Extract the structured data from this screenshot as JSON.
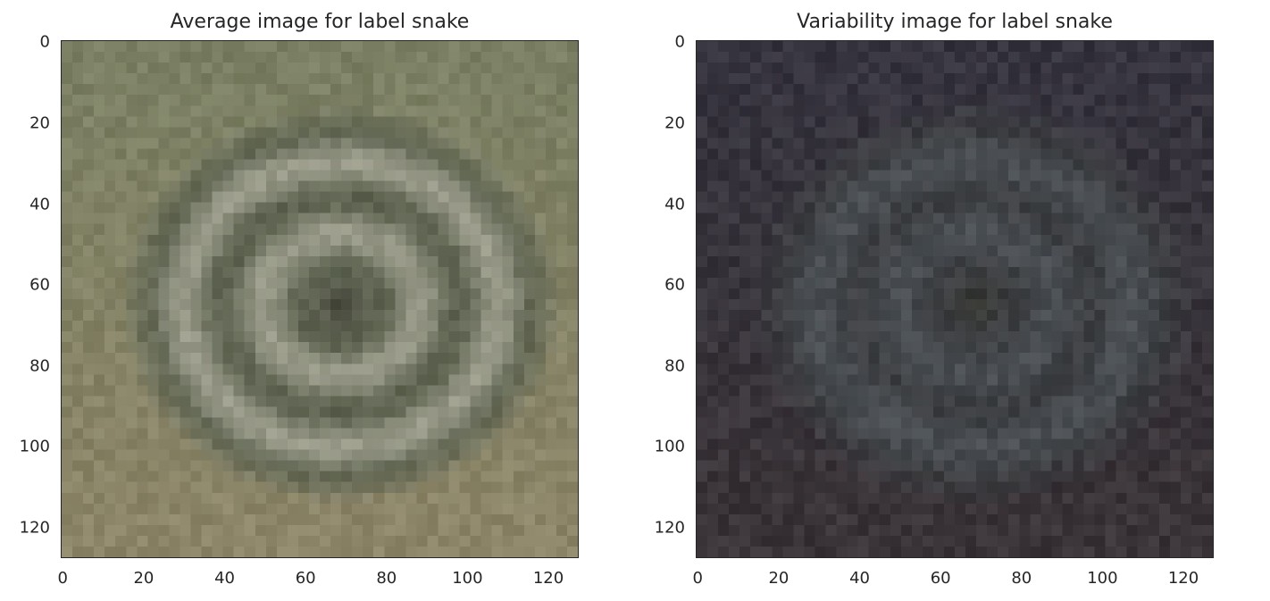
{
  "chart_data": [
    {
      "type": "heatmap",
      "title": "Average image for label snake",
      "xlabel": "",
      "ylabel": "",
      "xlim": [
        0,
        127
      ],
      "ylim": [
        127,
        0
      ],
      "x_ticks": [
        "0",
        "20",
        "40",
        "60",
        "80",
        "100",
        "120"
      ],
      "y_ticks": [
        "0",
        "20",
        "40",
        "60",
        "80",
        "100",
        "120"
      ],
      "image_size": [
        128,
        128
      ],
      "colors": {
        "background": "#7a7f63",
        "ring_light": "#a4a493",
        "ring_dark": "#5d6350",
        "center": "#3a3d30",
        "ground": "#8c8568"
      }
    },
    {
      "type": "heatmap",
      "title": "Variability image for label snake",
      "xlabel": "",
      "ylabel": "",
      "xlim": [
        0,
        127
      ],
      "ylim": [
        127,
        0
      ],
      "x_ticks": [
        "0",
        "20",
        "40",
        "60",
        "80",
        "100",
        "120"
      ],
      "y_ticks": [
        "0",
        "20",
        "40",
        "60",
        "80",
        "100",
        "120"
      ],
      "image_size": [
        128,
        128
      ],
      "colors": {
        "background": "#35333e",
        "ring_light": "#4d5257",
        "ring_dark": "#3d3f42",
        "center": "#2f2f2a",
        "ground": "#3a3438"
      }
    }
  ]
}
